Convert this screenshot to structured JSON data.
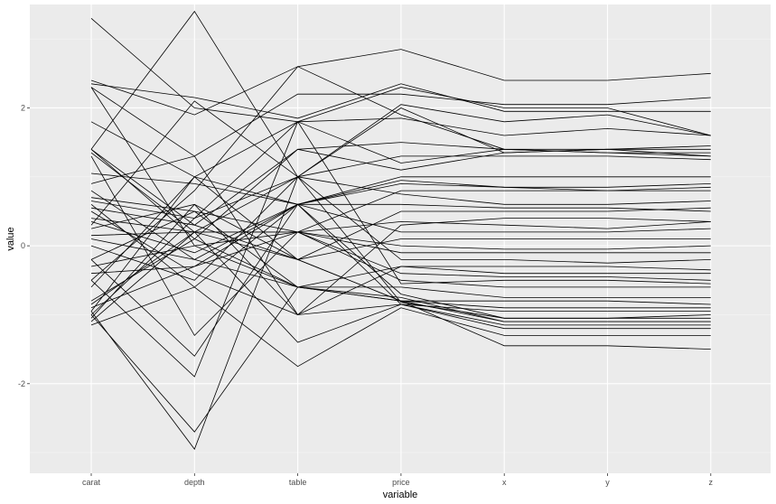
{
  "chart_data": {
    "type": "line",
    "subtype": "parallel-coordinates",
    "xlabel": "variable",
    "ylabel": "value",
    "categories": [
      "carat",
      "depth",
      "table",
      "price",
      "x",
      "y",
      "z"
    ],
    "ylim": [
      -3.3,
      3.5
    ],
    "yticks": [
      -2,
      0,
      2
    ],
    "ytick_labels": [
      "-2",
      "0",
      "2"
    ],
    "grid": true,
    "legend": "none",
    "colors": {
      "panel_background": "#ebebeb",
      "grid_major": "#ffffff",
      "grid_minor": "#f5f5f5",
      "line": "#000000"
    },
    "series": [
      {
        "values": [
          3.3,
          2.0,
          1.8,
          2.3,
          2.0,
          2.0,
          1.6
        ]
      },
      {
        "values": [
          2.4,
          1.9,
          2.6,
          2.85,
          2.4,
          2.4,
          2.5
        ]
      },
      {
        "values": [
          2.3,
          1.3,
          2.2,
          2.2,
          2.05,
          2.05,
          2.15
        ]
      },
      {
        "values": [
          2.35,
          2.15,
          1.85,
          2.35,
          1.95,
          1.95,
          1.95
        ]
      },
      {
        "values": [
          1.4,
          3.4,
          1.0,
          2.05,
          1.8,
          1.9,
          1.6
        ]
      },
      {
        "values": [
          1.8,
          1.0,
          1.8,
          1.85,
          1.6,
          1.7,
          1.6
        ]
      },
      {
        "values": [
          1.4,
          0.3,
          1.4,
          1.5,
          1.4,
          1.35,
          1.3
        ]
      },
      {
        "values": [
          1.35,
          0.2,
          1.0,
          1.3,
          1.3,
          1.3,
          1.25
        ]
      },
      {
        "values": [
          1.4,
          0.1,
          1.4,
          1.1,
          1.35,
          1.4,
          1.4
        ]
      },
      {
        "values": [
          1.05,
          0.9,
          0.6,
          1.0,
          1.0,
          1.0,
          1.0
        ]
      },
      {
        "values": [
          0.8,
          -0.2,
          0.6,
          0.95,
          0.85,
          0.8,
          0.8
        ]
      },
      {
        "values": [
          0.7,
          0.5,
          0.2,
          0.8,
          0.8,
          0.8,
          0.85
        ]
      },
      {
        "values": [
          0.65,
          0.4,
          1.0,
          0.75,
          0.6,
          0.6,
          0.65
        ]
      },
      {
        "values": [
          0.6,
          -0.6,
          0.6,
          0.6,
          0.55,
          0.55,
          0.5
        ]
      },
      {
        "values": [
          0.55,
          0.3,
          -0.2,
          0.5,
          0.5,
          0.5,
          0.55
        ]
      },
      {
        "values": [
          0.4,
          0.2,
          0.2,
          0.35,
          0.3,
          0.25,
          0.35
        ]
      },
      {
        "values": [
          0.35,
          -0.1,
          0.6,
          0.2,
          0.2,
          0.2,
          0.25
        ]
      },
      {
        "values": [
          0.25,
          0.6,
          -0.2,
          0.1,
          0.1,
          0.1,
          0.1
        ]
      },
      {
        "values": [
          0.15,
          0.2,
          0.2,
          0.0,
          -0.05,
          -0.05,
          0.0
        ]
      },
      {
        "values": [
          0.0,
          -0.5,
          1.0,
          -0.2,
          -0.2,
          -0.25,
          -0.2
        ]
      },
      {
        "values": [
          -0.2,
          0.5,
          -0.6,
          -0.3,
          -0.3,
          -0.3,
          -0.35
        ]
      },
      {
        "values": [
          -0.4,
          -0.3,
          0.2,
          -0.4,
          -0.45,
          -0.45,
          -0.5
        ]
      },
      {
        "values": [
          -0.5,
          -1.9,
          1.8,
          -0.55,
          -0.5,
          -0.5,
          -0.55
        ]
      },
      {
        "values": [
          -0.8,
          0.1,
          -0.6,
          -0.8,
          -0.8,
          -0.8,
          -0.85
        ]
      },
      {
        "values": [
          -0.85,
          0.2,
          -0.2,
          -0.8,
          -0.9,
          -0.9,
          -0.9
        ]
      },
      {
        "values": [
          -0.9,
          -0.3,
          0.6,
          -0.85,
          -0.95,
          -0.95,
          -0.95
        ]
      },
      {
        "values": [
          -0.95,
          -2.95,
          1.0,
          -0.82,
          -1.05,
          -1.05,
          -1.0
        ]
      },
      {
        "values": [
          -1.0,
          -2.7,
          -0.6,
          -0.8,
          -1.1,
          -1.1,
          -1.1
        ]
      },
      {
        "values": [
          -1.05,
          0.6,
          -1.0,
          -0.85,
          -1.15,
          -1.15,
          -1.15
        ]
      },
      {
        "values": [
          -1.1,
          0.2,
          -1.4,
          -0.85,
          -1.2,
          -1.2,
          -1.2
        ]
      },
      {
        "values": [
          -1.15,
          -0.6,
          -1.75,
          -0.9,
          -1.3,
          -1.3,
          -1.3
        ]
      },
      {
        "values": [
          -0.95,
          1.0,
          -0.2,
          -0.8,
          -1.45,
          -1.45,
          -1.5
        ]
      },
      {
        "values": [
          -0.2,
          -1.6,
          0.6,
          -0.7,
          -1.05,
          -1.05,
          -1.05
        ]
      },
      {
        "values": [
          0.1,
          -0.2,
          -0.6,
          -0.6,
          -0.75,
          -0.75,
          -0.75
        ]
      },
      {
        "values": [
          2.3,
          0.0,
          -0.6,
          -0.75,
          -1.1,
          -1.1,
          -1.1
        ]
      },
      {
        "values": [
          1.3,
          -1.3,
          0.2,
          -0.5,
          -0.6,
          -0.6,
          -0.6
        ]
      },
      {
        "values": [
          0.9,
          1.3,
          -1.0,
          -0.3,
          -0.4,
          -0.4,
          -0.4
        ]
      },
      {
        "values": [
          -0.6,
          1.0,
          0.6,
          0.9,
          0.85,
          0.85,
          0.9
        ]
      },
      {
        "values": [
          -1.0,
          0.4,
          1.8,
          1.2,
          1.4,
          1.4,
          1.45
        ]
      },
      {
        "values": [
          0.3,
          2.1,
          1.0,
          2.0,
          1.35,
          1.4,
          1.3
        ]
      },
      {
        "values": [
          -0.5,
          0.8,
          2.6,
          1.9,
          1.4,
          1.35,
          1.35
        ]
      },
      {
        "values": [
          0.5,
          -0.4,
          -1.0,
          0.3,
          0.4,
          0.4,
          0.35
        ]
      },
      {
        "values": [
          -0.3,
          0.0,
          0.2,
          -0.1,
          -0.1,
          -0.1,
          -0.1
        ]
      }
    ]
  }
}
